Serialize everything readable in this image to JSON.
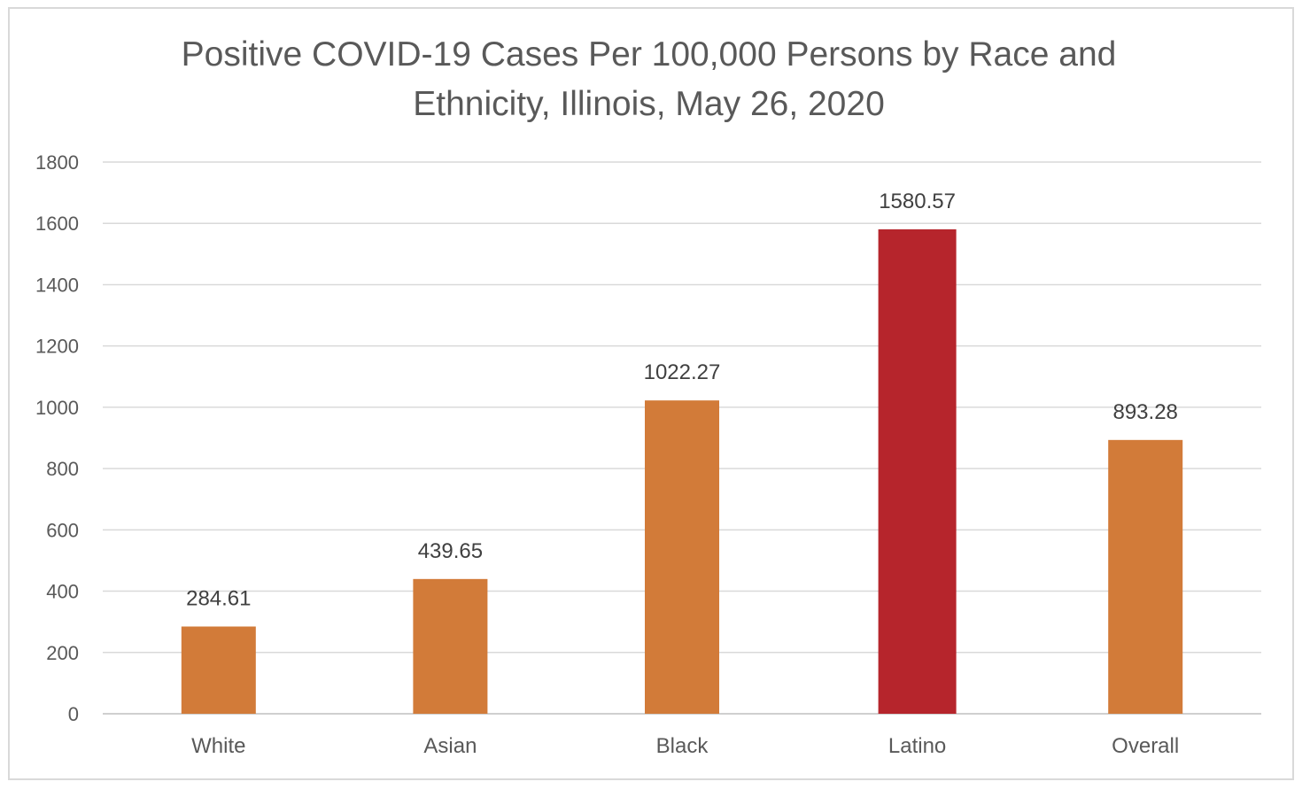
{
  "chart_data": {
    "type": "bar",
    "title_lines": [
      "Positive COVID-19 Cases Per 100,000 Persons by Race and",
      "Ethnicity, Illinois, May 26, 2020"
    ],
    "title": "Positive COVID-19 Cases Per 100,000 Persons by Race and Ethnicity, Illinois, May 26, 2020",
    "xlabel": "",
    "ylabel": "",
    "categories": [
      "White",
      "Asian",
      "Black",
      "Latino",
      "Overall"
    ],
    "values": [
      284.61,
      439.65,
      1022.27,
      1580.57,
      893.28
    ],
    "data_labels": [
      "284.61",
      "439.65",
      "1022.27",
      "1580.57",
      "893.28"
    ],
    "bar_colors": [
      "#d27b39",
      "#d27b39",
      "#d27b39",
      "#b6252c",
      "#d27b39"
    ],
    "ylim": [
      0,
      1800
    ],
    "yticks": [
      0,
      200,
      400,
      600,
      800,
      1000,
      1200,
      1400,
      1600,
      1800
    ],
    "ytick_labels": [
      "0",
      "200",
      "400",
      "600",
      "800",
      "1000",
      "1200",
      "1400",
      "1600",
      "1800"
    ],
    "grid": true,
    "legend": "none"
  }
}
